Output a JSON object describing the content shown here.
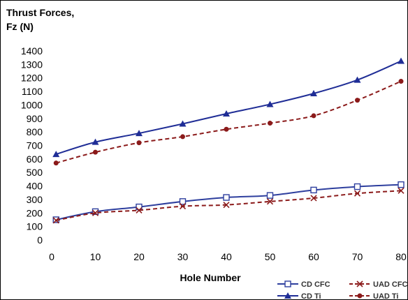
{
  "chart_data": {
    "type": "line",
    "title_line1": "Thrust Forces,",
    "title_line2": "Fz (N)",
    "xlabel": "Hole Number",
    "ylabel": "",
    "x": [
      1,
      10,
      20,
      30,
      40,
      50,
      60,
      70,
      80
    ],
    "x_ticks": [
      0,
      10,
      20,
      30,
      40,
      50,
      60,
      70,
      80
    ],
    "x_tick_labels": [
      "0",
      "10",
      "20",
      "30",
      "40",
      "50",
      "60",
      "70",
      "80"
    ],
    "xlim": [
      0,
      80
    ],
    "ylim": [
      0,
      1400
    ],
    "y_ticks": [
      0,
      100,
      200,
      300,
      400,
      500,
      600,
      700,
      800,
      900,
      1000,
      1100,
      1200,
      1300,
      1400
    ],
    "y_tick_labels": [
      "0",
      "100",
      "200",
      "300",
      "400",
      "500",
      "600",
      "700",
      "800",
      "900",
      "1000",
      "1100",
      "1200",
      "1300",
      "1400"
    ],
    "grid": false,
    "legend_position": "bottom-right",
    "series": [
      {
        "name": "CD CFC",
        "color": "#2e3f9e",
        "marker": "square-open",
        "dash": "solid",
        "values": [
          150,
          210,
          245,
          285,
          315,
          330,
          370,
          395,
          410
        ]
      },
      {
        "name": "UAD CFC",
        "color": "#8b1a1a",
        "marker": "x",
        "dash": "dashed",
        "values": [
          145,
          200,
          220,
          250,
          260,
          285,
          310,
          345,
          365
        ]
      },
      {
        "name": "CD Ti",
        "color": "#1f2d96",
        "marker": "triangle-filled",
        "dash": "solid",
        "values": [
          635,
          725,
          790,
          860,
          935,
          1005,
          1085,
          1185,
          1325
        ]
      },
      {
        "name": "UAD Ti",
        "color": "#8b1a1a",
        "marker": "circle-filled",
        "dash": "dashed",
        "values": [
          570,
          650,
          720,
          765,
          820,
          865,
          920,
          1035,
          1175
        ]
      }
    ]
  }
}
